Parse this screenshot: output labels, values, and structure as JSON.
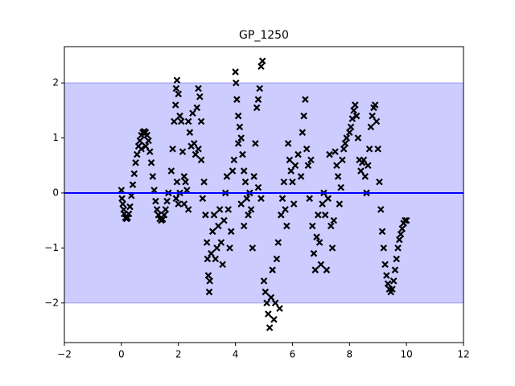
{
  "chart_data": {
    "type": "scatter",
    "title": "GP_1250",
    "xlim": [
      -2,
      12
    ],
    "ylim": [
      -2.72,
      2.66
    ],
    "xticks": [
      {
        "value": -2,
        "label": "−2"
      },
      0,
      2,
      4,
      6,
      8,
      10,
      12
    ],
    "yticks": [
      {
        "value": -2,
        "label": "−2"
      },
      {
        "value": -1,
        "label": "−1"
      },
      0,
      1,
      2
    ],
    "band": [
      -2,
      2
    ],
    "band_color": "#ccccff",
    "mean": 0,
    "mean_color": "#0000ff",
    "color": "#000000",
    "x": [
      0.0,
      0.02,
      0.05,
      0.08,
      0.1,
      0.14,
      0.18,
      0.22,
      0.26,
      0.3,
      0.35,
      0.4,
      0.45,
      0.5,
      0.55,
      0.6,
      0.65,
      0.7,
      0.75,
      0.8,
      0.85,
      0.9,
      0.95,
      0.7,
      0.85,
      1.0,
      1.05,
      1.1,
      1.15,
      1.2,
      1.25,
      1.3,
      1.35,
      1.4,
      1.45,
      1.5,
      1.55,
      1.6,
      1.65,
      1.75,
      1.8,
      1.85,
      1.9,
      1.92,
      1.95,
      2.0,
      2.05,
      2.1,
      1.92,
      1.95,
      2.0,
      2.05,
      2.15,
      2.2,
      2.25,
      2.3,
      2.35,
      2.4,
      2.45,
      2.5,
      2.55,
      2.6,
      2.65,
      2.7,
      2.75,
      2.8,
      2.7,
      2.8,
      2.2,
      2.35,
      2.85,
      2.9,
      2.95,
      3.0,
      3.02,
      3.05,
      3.08,
      3.1,
      3.15,
      3.2,
      3.25,
      3.3,
      3.35,
      3.4,
      3.45,
      3.5,
      3.55,
      3.6,
      3.65,
      3.7,
      3.75,
      3.8,
      3.85,
      3.9,
      3.95,
      4.0,
      4.02,
      4.05,
      4.1,
      4.15,
      4.2,
      4.25,
      4.3,
      4.35,
      4.4,
      4.45,
      4.2,
      4.3,
      4.1,
      4.5,
      4.55,
      4.6,
      4.65,
      4.7,
      4.75,
      4.8,
      4.85,
      4.9,
      4.95,
      4.8,
      4.9,
      5.0,
      5.05,
      5.1,
      5.15,
      5.2,
      5.25,
      5.3,
      5.35,
      5.4,
      5.45,
      5.5,
      5.55,
      5.6,
      5.65,
      5.7,
      5.75,
      5.8,
      5.85,
      5.9,
      5.95,
      6.0,
      6.05,
      6.1,
      6.2,
      6.3,
      6.35,
      6.4,
      6.45,
      6.5,
      6.55,
      6.6,
      6.65,
      6.7,
      6.75,
      6.8,
      6.85,
      6.9,
      6.95,
      7.0,
      7.05,
      7.1,
      7.15,
      7.2,
      7.25,
      7.3,
      7.35,
      7.4,
      7.45,
      7.5,
      7.55,
      7.6,
      7.65,
      7.7,
      7.75,
      7.8,
      7.85,
      7.9,
      8.0,
      8.05,
      8.1,
      8.15,
      8.2,
      8.25,
      8.3,
      8.35,
      8.4,
      8.45,
      8.5,
      8.55,
      8.6,
      8.65,
      8.7,
      8.75,
      8.8,
      8.85,
      8.9,
      8.95,
      9.0,
      9.05,
      9.1,
      9.15,
      9.2,
      9.25,
      9.3,
      9.35,
      9.4,
      9.45,
      9.5,
      9.55,
      9.6,
      9.65,
      9.7,
      9.75,
      9.8,
      9.85,
      9.9,
      9.95,
      10.0
    ],
    "values": [
      0.05,
      -0.1,
      -0.2,
      -0.3,
      -0.38,
      -0.45,
      -0.47,
      -0.45,
      -0.38,
      -0.25,
      -0.05,
      0.15,
      0.35,
      0.55,
      0.7,
      0.85,
      0.95,
      1.05,
      1.1,
      1.12,
      1.1,
      1.05,
      0.95,
      0.8,
      0.85,
      0.75,
      0.55,
      0.3,
      0.05,
      -0.15,
      -0.3,
      -0.4,
      -0.47,
      -0.5,
      -0.48,
      -0.4,
      -0.3,
      -0.15,
      0.0,
      0.4,
      0.8,
      1.3,
      1.6,
      1.9,
      2.05,
      1.8,
      1.4,
      1.3,
      -0.1,
      0.2,
      -0.2,
      0.0,
      0.75,
      0.3,
      0.2,
      0.05,
      1.3,
      1.1,
      0.85,
      1.45,
      0.9,
      0.7,
      1.55,
      1.9,
      1.75,
      1.3,
      0.8,
      0.6,
      -0.2,
      -0.3,
      -0.1,
      0.2,
      -0.4,
      -0.9,
      -1.2,
      -1.5,
      -1.8,
      -1.6,
      -1.1,
      -0.7,
      -0.4,
      -1.2,
      -1.0,
      -0.6,
      -0.3,
      -0.9,
      -1.3,
      -0.5,
      0.0,
      0.3,
      -0.3,
      -1.0,
      -0.7,
      0.4,
      0.6,
      2.2,
      2.0,
      1.7,
      1.4,
      1.2,
      1.0,
      0.7,
      0.4,
      0.2,
      -0.1,
      -0.4,
      -0.2,
      -0.6,
      0.9,
      0.0,
      -0.3,
      -1.0,
      0.3,
      0.9,
      1.55,
      1.7,
      1.9,
      2.3,
      2.4,
      0.1,
      -0.1,
      -1.6,
      -1.8,
      -2.0,
      -2.2,
      -2.45,
      -1.9,
      -1.4,
      -2.3,
      -2.0,
      -1.2,
      -0.9,
      -2.1,
      -0.4,
      -0.1,
      0.2,
      -0.3,
      -0.6,
      0.9,
      0.6,
      0.4,
      0.2,
      -0.2,
      0.5,
      0.7,
      0.3,
      1.1,
      1.4,
      1.7,
      0.8,
      0.5,
      -0.1,
      0.6,
      -0.6,
      -1.1,
      -1.4,
      -0.8,
      -0.4,
      -0.9,
      -1.3,
      -0.2,
      0.0,
      -0.4,
      -1.4,
      -0.1,
      0.7,
      -0.6,
      -1.0,
      -0.5,
      0.75,
      0.5,
      0.3,
      -0.2,
      0.1,
      0.6,
      0.8,
      0.9,
      1.0,
      1.1,
      1.2,
      1.35,
      1.5,
      1.6,
      1.4,
      1.0,
      0.6,
      0.4,
      0.55,
      0.6,
      0.3,
      0.0,
      0.5,
      0.8,
      1.2,
      1.4,
      1.55,
      1.6,
      1.3,
      0.8,
      0.2,
      -0.3,
      -0.7,
      -1.0,
      -1.3,
      -1.5,
      -1.65,
      -1.75,
      -1.8,
      -1.75,
      -1.6,
      -1.4,
      -1.2,
      -1.0,
      -0.85,
      -0.75,
      -0.65,
      -0.55,
      -0.5,
      -0.5
    ]
  }
}
